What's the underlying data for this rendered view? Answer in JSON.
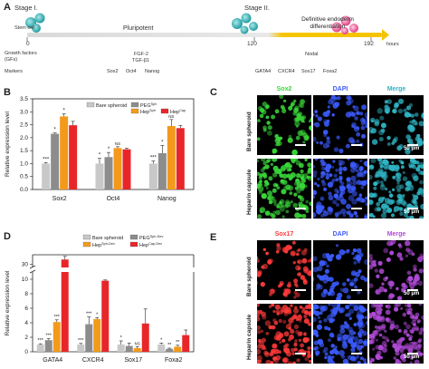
{
  "panel_a": {
    "letter": "A",
    "stage1": "Stage I.",
    "stage2": "Stage II.",
    "stem_cell": "Stem cell",
    "pluripotent": "Pluripotent",
    "definitive_line1": "Definitive endoderm",
    "definitive_line2": "differentiation",
    "time_0": "0",
    "time_120": "120",
    "time_192": "192",
    "hours": "hours",
    "gf_line1": "Growth factors",
    "gf_line2": "(GFs)",
    "gf_a1": "FGF-2",
    "gf_a2": "TGF-β1",
    "gf_b": "Nodal",
    "markers": "Markers",
    "markers_a": [
      "Sox2",
      "Oct4",
      "Nanog"
    ],
    "markers_b": [
      "GATA4",
      "CXCR4",
      "Sox17",
      "Foxa2"
    ],
    "colors": {
      "bar_start": "#d9d9d9",
      "bar_end": "#f5c400",
      "cell_stem": "#3fb5b5",
      "cell_end": "#e94b8a"
    }
  },
  "panel_b": {
    "letter": "B",
    "chart_data": {
      "type": "bar",
      "categories": [
        "Sox2",
        "Oct4",
        "Nanog"
      ],
      "ylabel": "Relative expression level",
      "ylim": [
        0,
        3.5
      ],
      "yticks": [
        "0.0",
        "0.5",
        "1.0",
        "1.5",
        "2.0",
        "2.5",
        "3.0",
        "3.5"
      ],
      "series": [
        {
          "name": "Bare spheroid",
          "color": "#c8c8c8",
          "values": [
            1.0,
            1.0,
            1.0
          ],
          "errors": [
            0.04,
            0.2,
            0.1
          ]
        },
        {
          "name": "PEG",
          "sup": "Sph",
          "color": "#8c8c8c",
          "values": [
            2.15,
            1.25,
            1.4
          ],
          "errors": [
            0.03,
            0.18,
            0.3
          ]
        },
        {
          "name": "Hep",
          "sup": "Sph",
          "color": "#f39a1c",
          "values": [
            2.82,
            1.6,
            2.45
          ],
          "errors": [
            0.1,
            0.05,
            0.25
          ]
        },
        {
          "name": "Hep",
          "sup": "Cap",
          "color": "#e8262a",
          "values": [
            2.48,
            1.55,
            2.37
          ],
          "errors": [
            0.15,
            0.04,
            0.1
          ]
        }
      ],
      "annotations": [
        {
          "category": 0,
          "series": 0,
          "text": "***"
        },
        {
          "category": 0,
          "series": 1,
          "text": "*"
        },
        {
          "category": 0,
          "series": 2,
          "text": "*"
        },
        {
          "category": 1,
          "series": 0,
          "text": "*"
        },
        {
          "category": 1,
          "series": 1,
          "text": "*"
        },
        {
          "category": 1,
          "series": 2,
          "text": "NS"
        },
        {
          "category": 2,
          "series": 0,
          "text": "***"
        },
        {
          "category": 2,
          "series": 1,
          "text": "*"
        },
        {
          "category": 2,
          "series": 2,
          "text": "NS"
        }
      ]
    }
  },
  "panel_c": {
    "letter": "C",
    "columns": [
      "Sox2",
      "DAPI",
      "Merge"
    ],
    "rows": [
      "Bare spheroid",
      "Heparin capsule"
    ],
    "scale": "50 μm",
    "colors": {
      "Sox2": "#39d639",
      "DAPI": "#3b5bff",
      "Merge": "#2fb4c4"
    }
  },
  "panel_d": {
    "letter": "D",
    "chart_data": {
      "type": "bar",
      "categories": [
        "GATA4",
        "CXCR4",
        "Sox17",
        "Foxa2"
      ],
      "ylabel": "Relative expression level",
      "yticks_low": [
        "0",
        "2",
        "4",
        "6",
        "8",
        "10"
      ],
      "yticks_high": [
        "30"
      ],
      "axis_break": [
        11,
        29
      ],
      "series": [
        {
          "name": "Bare spheroid",
          "color": "#c8c8c8",
          "values": [
            1.0,
            1.0,
            1.0,
            1.0
          ],
          "errors": [
            0.1,
            0.15,
            0.5,
            0.2
          ]
        },
        {
          "name": "PEG",
          "sup": "Sph-Dev",
          "color": "#8c8c8c",
          "values": [
            1.6,
            3.8,
            0.8,
            0.4
          ],
          "errors": [
            0.2,
            1.0,
            0.4,
            0.1
          ]
        },
        {
          "name": "Hep",
          "sup": "Sph-Dev",
          "color": "#f39a1c",
          "values": [
            4.1,
            4.5,
            0.5,
            0.7
          ],
          "errors": [
            0.3,
            0.2,
            0.2,
            0.2
          ]
        },
        {
          "name": "Hep",
          "sup": "Cap-Dev",
          "color": "#e8262a",
          "values": [
            31.5,
            9.8,
            3.9,
            2.3
          ],
          "errors": [
            1.0,
            0.1,
            2.0,
            0.7
          ]
        }
      ],
      "annotations": [
        {
          "category": 0,
          "series": 0,
          "text": "***"
        },
        {
          "category": 0,
          "series": 1,
          "text": "***"
        },
        {
          "category": 0,
          "series": 2,
          "text": "***"
        },
        {
          "category": 1,
          "series": 0,
          "text": "***"
        },
        {
          "category": 1,
          "series": 1,
          "text": "***"
        },
        {
          "category": 1,
          "series": 2,
          "text": "*"
        },
        {
          "category": 2,
          "series": 0,
          "text": "*"
        },
        {
          "category": 2,
          "series": 2,
          "text": "NS"
        },
        {
          "category": 3,
          "series": 0,
          "text": "*"
        },
        {
          "category": 3,
          "series": 1,
          "text": "**"
        },
        {
          "category": 3,
          "series": 2,
          "text": "**"
        }
      ]
    }
  },
  "panel_e": {
    "letter": "E",
    "columns": [
      "Sox17",
      "DAPI",
      "Merge"
    ],
    "rows": [
      "Bare spheroid",
      "Heparin capsule"
    ],
    "scale": "50 μm",
    "colors": {
      "Sox17": "#ff3a3a",
      "DAPI": "#3b5bff",
      "Merge": "#b04ad8"
    }
  }
}
